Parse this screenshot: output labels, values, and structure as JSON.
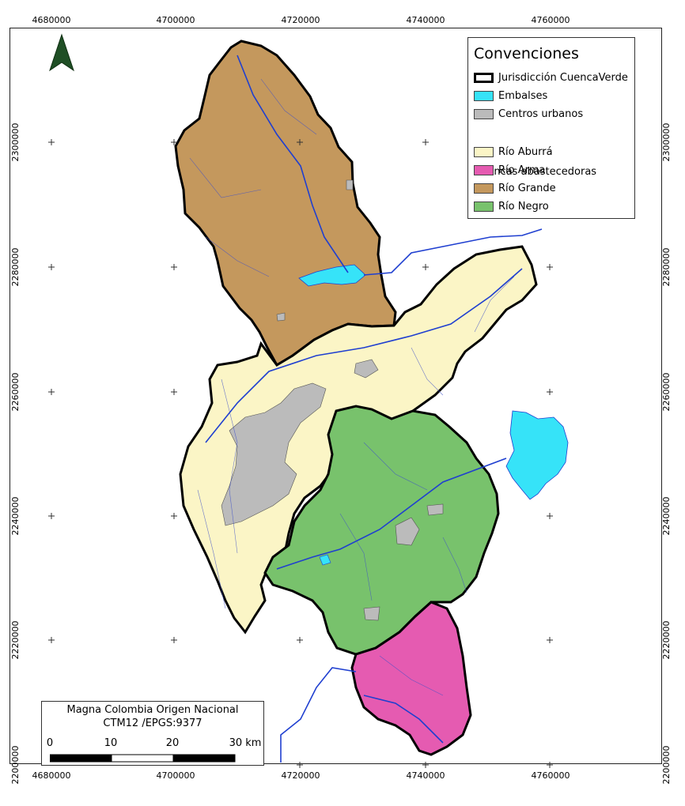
{
  "axes": {
    "x_ticks": [
      "4680000",
      "4700000",
      "4720000",
      "4740000",
      "4760000"
    ],
    "y_ticks": [
      "2300000",
      "2280000",
      "2260000",
      "2240000",
      "2220000",
      "2200000"
    ]
  },
  "legend": {
    "title": "Convenciones",
    "items": [
      {
        "label": "Jurisdicción CuencaVerde",
        "color": "#ffffff",
        "style": "outline"
      },
      {
        "label": "Embalses",
        "color": "#36e3f8"
      },
      {
        "label": "Centros urbanos",
        "color": "#bbbbbb"
      }
    ],
    "subtitle": "Cuencas abastecedoras",
    "basins": [
      {
        "label": "Río Aburrá",
        "color": "#fbf5c6"
      },
      {
        "label": "Río Arma",
        "color": "#e55bb1"
      },
      {
        "label": "Río Grande",
        "color": "#c4985d"
      },
      {
        "label": "Río Negro",
        "color": "#78c26c"
      }
    ]
  },
  "scale": {
    "line1": "Magna Colombia Origen Nacional",
    "line2": "CTM12 /EPGS:9377",
    "labels": [
      "0",
      "10",
      "20",
      "30 km"
    ]
  },
  "colors": {
    "river": "#1f3fd0",
    "north_arrow": "#1f4f25",
    "outline": "#000000"
  },
  "icons": {
    "north": "north-arrow-icon"
  }
}
